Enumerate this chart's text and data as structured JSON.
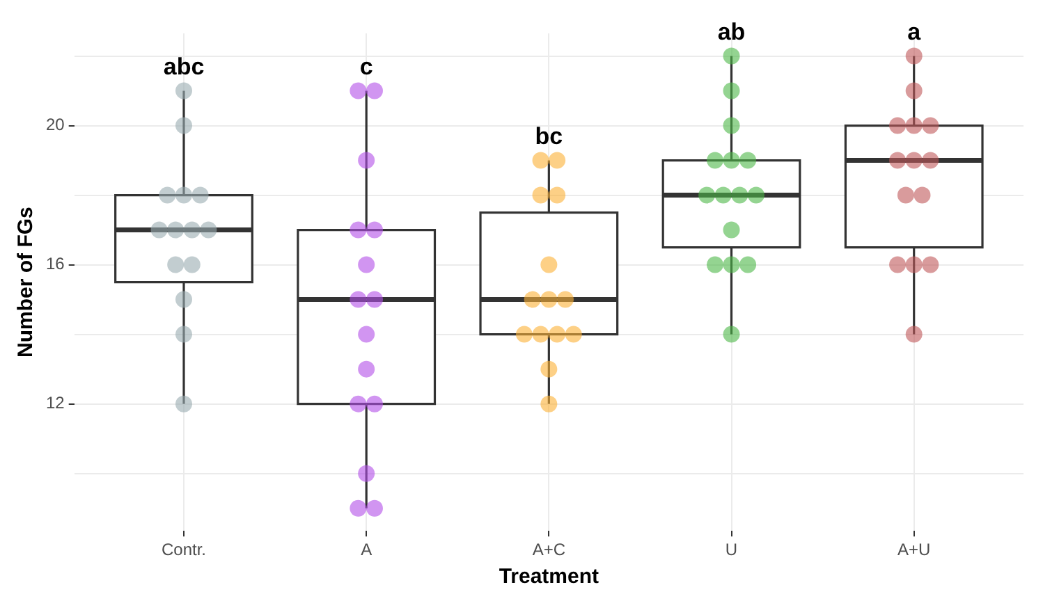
{
  "chart_data": {
    "type": "box",
    "xlabel": "Treatment",
    "ylabel": "Number of FGs",
    "categories": [
      "Contr.",
      "A",
      "A+C",
      "U",
      "A+U"
    ],
    "boxes": [
      {
        "low": 12,
        "q1": 15.5,
        "median": 17,
        "q3": 18,
        "high": 21
      },
      {
        "low": 9,
        "q1": 12,
        "median": 15,
        "q3": 17,
        "high": 21
      },
      {
        "low": 12,
        "q1": 14,
        "median": 15,
        "q3": 17.5,
        "high": 19
      },
      {
        "low": 14,
        "q1": 16.5,
        "median": 18,
        "q3": 19,
        "high": 22
      },
      {
        "low": 14,
        "q1": 16.5,
        "median": 19,
        "q3": 20,
        "high": 22
      }
    ],
    "series": [
      {
        "type": "scatter",
        "color": "#9aabb0",
        "x": [
          "Contr.",
          "Contr.",
          "Contr.",
          "Contr.",
          "Contr.",
          "Contr.",
          "Contr.",
          "Contr.",
          "Contr.",
          "Contr.",
          "Contr.",
          "Contr.",
          "Contr.",
          "Contr."
        ],
        "values": [
          21,
          20,
          18,
          18,
          18,
          17,
          17,
          17,
          17,
          16,
          16,
          15,
          14,
          12
        ]
      },
      {
        "type": "scatter",
        "color": "#b24fe8",
        "x": [
          "A",
          "A",
          "A",
          "A",
          "A",
          "A",
          "A",
          "A",
          "A",
          "A",
          "A",
          "A",
          "A",
          "A",
          "A"
        ],
        "values": [
          21,
          21,
          19,
          17,
          17,
          16,
          15,
          15,
          14,
          13,
          12,
          12,
          10,
          9,
          9
        ]
      },
      {
        "type": "scatter",
        "color": "#fbb035",
        "x": [
          "A+C",
          "A+C",
          "A+C",
          "A+C",
          "A+C",
          "A+C",
          "A+C",
          "A+C",
          "A+C",
          "A+C",
          "A+C",
          "A+C",
          "A+C",
          "A+C"
        ],
        "values": [
          19,
          19,
          18,
          18,
          16,
          15,
          15,
          15,
          14,
          14,
          14,
          14,
          13,
          12
        ]
      },
      {
        "type": "scatter",
        "color": "#4cb848",
        "x": [
          "U",
          "U",
          "U",
          "U",
          "U",
          "U",
          "U",
          "U",
          "U",
          "U",
          "U",
          "U",
          "U",
          "U",
          "U"
        ],
        "values": [
          22,
          21,
          20,
          19,
          19,
          19,
          18,
          18,
          18,
          18,
          17,
          16,
          16,
          16,
          14
        ]
      },
      {
        "type": "scatter",
        "color": "#c0585a",
        "x": [
          "A+U",
          "A+U",
          "A+U",
          "A+U",
          "A+U",
          "A+U",
          "A+U",
          "A+U",
          "A+U",
          "A+U",
          "A+U",
          "A+U",
          "A+U",
          "A+U"
        ],
        "values": [
          22,
          21,
          20,
          20,
          20,
          19,
          19,
          19,
          18,
          18,
          16,
          16,
          16,
          14
        ]
      }
    ],
    "annotations": [
      "abc",
      "c",
      "bc",
      "ab",
      "a"
    ],
    "ylim": [
      8.35,
      22.65
    ],
    "yticks": [
      {
        "value": 10,
        "label": null
      },
      12,
      {
        "value": 14,
        "label": null
      },
      16,
      {
        "value": 18,
        "label": null
      },
      20,
      {
        "value": 22,
        "label": null
      }
    ],
    "grid": true,
    "marker": "circle"
  }
}
